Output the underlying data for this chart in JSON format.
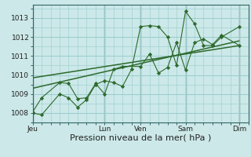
{
  "background_color": "#cce8e8",
  "grid_color": "#99cccc",
  "line_color": "#2d6a2d",
  "xlabel": "Pression niveau de la mer( hPa )",
  "xlabel_fontsize": 8,
  "ylim": [
    1007.5,
    1013.7
  ],
  "yticks": [
    1008,
    1009,
    1010,
    1011,
    1012,
    1013
  ],
  "xtick_labels": [
    "Jeu",
    "",
    "Lun",
    "Ven",
    "",
    "Sam",
    "",
    "Dim"
  ],
  "xtick_positions": [
    0,
    4,
    8,
    12,
    15,
    17,
    20,
    23
  ],
  "vlines": [
    0,
    8,
    12,
    17,
    23
  ],
  "xlim": [
    0,
    24
  ],
  "series1_x": [
    0,
    1,
    3,
    4,
    5,
    6,
    7,
    8,
    9,
    10,
    11,
    12,
    13,
    14,
    15,
    16,
    17,
    18,
    19,
    20,
    21,
    23
  ],
  "series1_y": [
    1008.0,
    1007.9,
    1009.0,
    1008.8,
    1008.3,
    1008.7,
    1009.5,
    1009.7,
    1009.6,
    1009.4,
    1010.3,
    1012.55,
    1012.6,
    1012.55,
    1012.0,
    1010.5,
    1013.35,
    1012.7,
    1011.55,
    1011.55,
    1012.0,
    1012.55
  ],
  "series2_x": [
    0,
    1,
    3,
    4,
    5,
    6,
    7,
    8,
    9,
    10,
    12,
    13,
    14,
    15,
    16,
    17,
    18,
    19,
    20,
    21,
    23
  ],
  "series2_y": [
    1008.05,
    1008.8,
    1009.6,
    1009.55,
    1008.75,
    1008.8,
    1009.55,
    1009.0,
    1010.3,
    1010.45,
    1010.45,
    1011.1,
    1010.1,
    1010.4,
    1011.7,
    1010.25,
    1011.7,
    1011.9,
    1011.6,
    1012.1,
    1011.55
  ],
  "trend1_x": [
    0,
    23
  ],
  "trend1_y": [
    1009.3,
    1011.8
  ],
  "trend2_x": [
    0,
    23
  ],
  "trend2_y": [
    1009.85,
    1011.55
  ]
}
